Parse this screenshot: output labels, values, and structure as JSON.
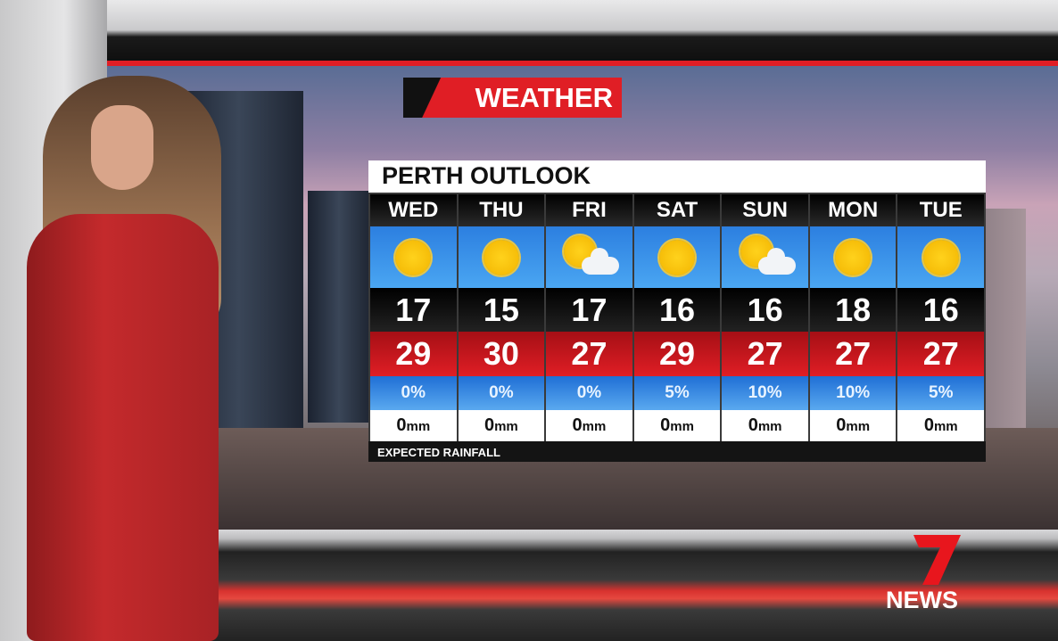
{
  "banner": {
    "label": "WEATHER"
  },
  "panel": {
    "title": "PERTH OUTLOOK",
    "footer": "EXPECTED RAINFALL",
    "unit": "mm",
    "days": [
      {
        "day": "WED",
        "icon": "sunny-icon",
        "low": "17",
        "high": "29",
        "rain_chance": "0%",
        "rain_mm": "0"
      },
      {
        "day": "THU",
        "icon": "sunny-icon",
        "low": "15",
        "high": "30",
        "rain_chance": "0%",
        "rain_mm": "0"
      },
      {
        "day": "FRI",
        "icon": "partly-cloudy-icon",
        "low": "17",
        "high": "27",
        "rain_chance": "0%",
        "rain_mm": "0"
      },
      {
        "day": "SAT",
        "icon": "sunny-icon",
        "low": "16",
        "high": "29",
        "rain_chance": "5%",
        "rain_mm": "0"
      },
      {
        "day": "SUN",
        "icon": "partly-cloudy-icon",
        "low": "16",
        "high": "27",
        "rain_chance": "10%",
        "rain_mm": "0"
      },
      {
        "day": "MON",
        "icon": "sunny-icon",
        "low": "18",
        "high": "27",
        "rain_chance": "10%",
        "rain_mm": "0"
      },
      {
        "day": "TUE",
        "icon": "sunny-icon",
        "low": "16",
        "high": "27",
        "rain_chance": "5%",
        "rain_mm": "0"
      }
    ]
  },
  "logo": {
    "text": "7 NEWS",
    "label": "NEWS"
  },
  "colors": {
    "brand_red": "#e01e25",
    "sky_blue": "#2c7fe0",
    "sun_yellow": "#ffd21c"
  }
}
